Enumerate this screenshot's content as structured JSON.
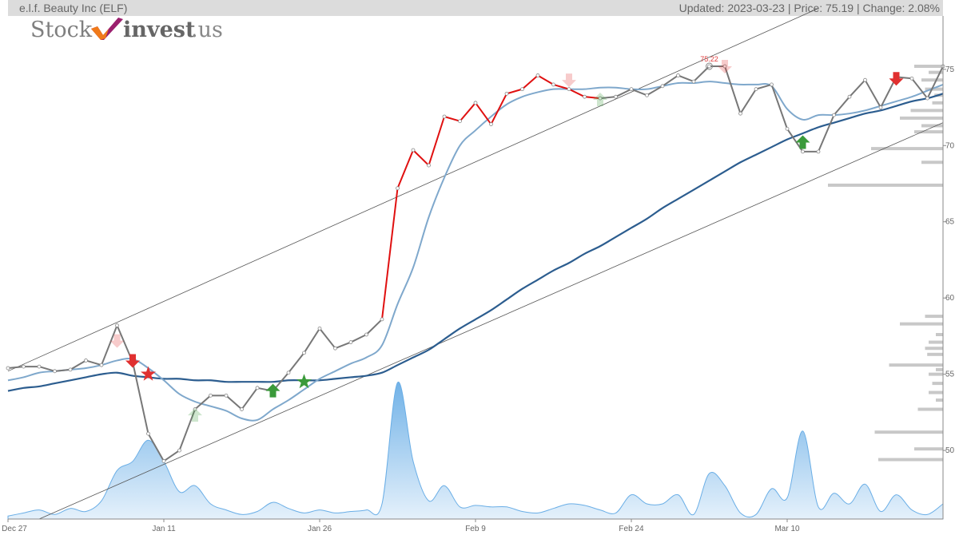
{
  "header": {
    "title": "e.l.f. Beauty Inc (ELF)",
    "status": "Updated: 2023-03-23 | Price: 75.19 | Change: 2.08%"
  },
  "logo": {
    "part1": "Stock",
    "part2": "invest",
    "part3": ".us"
  },
  "colors": {
    "up_trend": "#e01010",
    "price": "#777777",
    "short_ma": "#7fa8cc",
    "long_ma": "#2c5d8f",
    "volume_fill": "#6aaee6",
    "buy_signal": "#3a9a3a",
    "sell_signal": "#e03030",
    "volume_profile": "#c8c8c8"
  },
  "chart_data": {
    "type": "line",
    "x_ticks": [
      "Dec 27",
      "Jan 11",
      "Jan 26",
      "Feb 9",
      "Feb 24",
      "Mar 10"
    ],
    "y_ticks": [
      50,
      55,
      60,
      65,
      70,
      75
    ],
    "ylim": [
      45.5,
      78.5
    ],
    "peak_label": "75.22",
    "series": [
      {
        "role": "price",
        "values": [
          55.4,
          55.5,
          55.5,
          55.2,
          55.3,
          55.9,
          55.6,
          58.2,
          55.8,
          51.1,
          49.3,
          50.0,
          52.7,
          53.6,
          53.6,
          52.7,
          54.1,
          53.9,
          55.1,
          56.4,
          58.0,
          56.7,
          57.1,
          57.6,
          58.6,
          67.2,
          69.7,
          68.7,
          71.9,
          71.6,
          72.8,
          71.4,
          73.4,
          73.7,
          74.6,
          74.0,
          73.7,
          73.2,
          73.1,
          73.2,
          73.7,
          73.3,
          73.9,
          74.6,
          74.2,
          75.2,
          75.2,
          72.1,
          73.7,
          74.0,
          71.1,
          69.6,
          69.6,
          72.0,
          73.2,
          74.3,
          72.5,
          74.5,
          74.4,
          73.1,
          75.2
        ],
        "up_trend_range": [
          24,
          38
        ]
      },
      {
        "role": "short_ma",
        "values": [
          54.6,
          54.8,
          55.1,
          55.2,
          55.3,
          55.4,
          55.6,
          55.9,
          56.0,
          55.4,
          54.6,
          53.7,
          53.2,
          52.9,
          52.6,
          52.1,
          52.0,
          52.7,
          53.3,
          54.0,
          54.7,
          55.2,
          55.7,
          56.1,
          56.9,
          59.6,
          62.0,
          65.3,
          67.9,
          70.0,
          71.0,
          71.9,
          72.7,
          73.2,
          73.5,
          73.7,
          73.7,
          73.7,
          73.8,
          73.8,
          73.7,
          73.7,
          73.9,
          74.1,
          74.1,
          74.2,
          74.1,
          74.0,
          74.0,
          73.9,
          72.4,
          71.7,
          72.0,
          72.0,
          72.1,
          72.3,
          72.6,
          72.9,
          73.2,
          73.6,
          74.0
        ]
      },
      {
        "role": "long_ma",
        "values": [
          53.9,
          54.1,
          54.2,
          54.4,
          54.6,
          54.8,
          55.0,
          55.1,
          54.9,
          54.8,
          54.7,
          54.7,
          54.6,
          54.6,
          54.5,
          54.5,
          54.5,
          54.5,
          54.6,
          54.6,
          54.6,
          54.7,
          54.8,
          54.9,
          55.1,
          55.6,
          56.1,
          56.6,
          57.3,
          58.0,
          58.6,
          59.2,
          59.9,
          60.6,
          61.2,
          61.8,
          62.3,
          62.9,
          63.4,
          64.0,
          64.6,
          65.2,
          65.9,
          66.5,
          67.1,
          67.7,
          68.3,
          68.9,
          69.4,
          69.9,
          70.4,
          70.8,
          71.2,
          71.5,
          71.8,
          72.1,
          72.3,
          72.6,
          72.9,
          73.1,
          73.4
        ]
      }
    ],
    "trend_channel": {
      "upper": [
        [
          0,
          55.2
        ],
        [
          52,
          79.0
        ]
      ],
      "lower": [
        [
          2,
          45.5
        ],
        [
          60,
          71.5
        ]
      ]
    },
    "volume": [
      0.02,
      0.04,
      0.06,
      0.03,
      0.07,
      0.05,
      0.12,
      0.32,
      0.38,
      0.52,
      0.38,
      0.18,
      0.22,
      0.1,
      0.06,
      0.03,
      0.05,
      0.11,
      0.07,
      0.04,
      0.06,
      0.04,
      0.05,
      0.06,
      0.1,
      0.9,
      0.38,
      0.12,
      0.22,
      0.08,
      0.09,
      0.08,
      0.08,
      0.05,
      0.04,
      0.07,
      0.1,
      0.09,
      0.06,
      0.04,
      0.16,
      0.1,
      0.1,
      0.16,
      0.03,
      0.3,
      0.22,
      0.04,
      0.03,
      0.2,
      0.14,
      0.58,
      0.08,
      0.17,
      0.1,
      0.23,
      0.05,
      0.16,
      0.06,
      0.03,
      0.1
    ],
    "buy_signals": [
      {
        "i": 17,
        "y": 53.9
      },
      {
        "i": 19,
        "y": 54.5
      },
      {
        "i": 51,
        "y": 70.2
      }
    ],
    "sell_signals": [
      {
        "i": 8,
        "y": 55.9
      },
      {
        "i": 9,
        "y": 55.0
      },
      {
        "i": 57,
        "y": 74.4
      }
    ],
    "faded_buy": [
      {
        "i": 12,
        "y": 52.3
      },
      {
        "i": 38,
        "y": 73.0
      }
    ],
    "faded_sell": [
      {
        "i": 7,
        "y": 57.2
      },
      {
        "i": 36,
        "y": 74.3
      },
      {
        "i": 46,
        "y": 75.2
      }
    ],
    "volume_profile": [
      {
        "price": 75.2,
        "size": 0.4
      },
      {
        "price": 74.8,
        "size": 0.2
      },
      {
        "price": 74.3,
        "size": 0.3
      },
      {
        "price": 73.7,
        "size": 0.25
      },
      {
        "price": 73.3,
        "size": 0.12
      },
      {
        "price": 72.8,
        "size": 0.15
      },
      {
        "price": 72.3,
        "size": 0.45
      },
      {
        "price": 71.8,
        "size": 0.6
      },
      {
        "price": 71.3,
        "size": 0.3
      },
      {
        "price": 70.9,
        "size": 0.4
      },
      {
        "price": 69.8,
        "size": 1.0
      },
      {
        "price": 68.9,
        "size": 0.3
      },
      {
        "price": 67.4,
        "size": 1.6
      },
      {
        "price": 58.8,
        "size": 0.25
      },
      {
        "price": 58.3,
        "size": 0.6
      },
      {
        "price": 57.6,
        "size": 0.1
      },
      {
        "price": 57.1,
        "size": 0.2
      },
      {
        "price": 56.7,
        "size": 0.25
      },
      {
        "price": 56.3,
        "size": 0.22
      },
      {
        "price": 55.6,
        "size": 0.75
      },
      {
        "price": 55.3,
        "size": 0.1
      },
      {
        "price": 55.0,
        "size": 0.2
      },
      {
        "price": 54.4,
        "size": 0.15
      },
      {
        "price": 53.8,
        "size": 0.2
      },
      {
        "price": 53.3,
        "size": 0.1
      },
      {
        "price": 52.7,
        "size": 0.35
      },
      {
        "price": 51.2,
        "size": 0.95
      },
      {
        "price": 50.1,
        "size": 0.4
      },
      {
        "price": 49.4,
        "size": 0.9
      }
    ]
  }
}
